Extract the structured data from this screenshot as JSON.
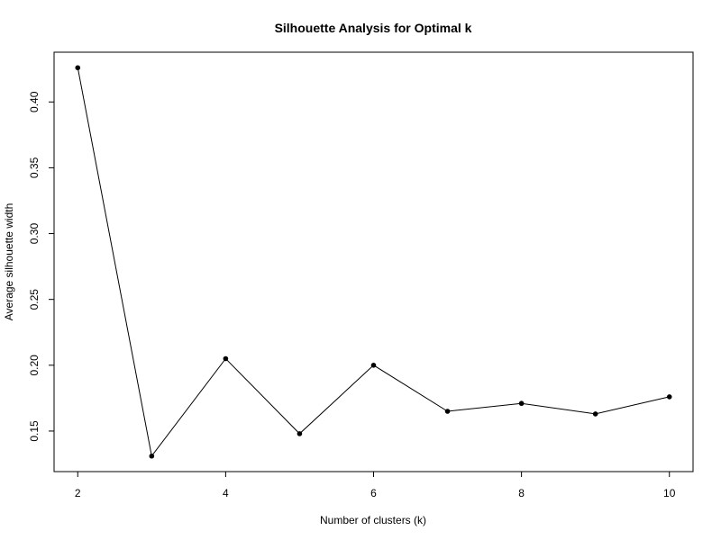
{
  "chart_data": {
    "type": "line",
    "title": "Silhouette Analysis for Optimal k",
    "xlabel": "Number of clusters (k)",
    "ylabel": "Average silhouette width",
    "x": [
      2,
      3,
      4,
      5,
      6,
      7,
      8,
      9,
      10
    ],
    "series": [
      {
        "values": [
          0.426,
          0.131,
          0.205,
          0.148,
          0.2,
          0.165,
          0.171,
          0.163,
          0.176
        ]
      }
    ],
    "xlim": [
      1.68,
      10.32
    ],
    "ylim": [
      0.1192,
      0.4378
    ],
    "xticks": [
      2,
      4,
      6,
      8,
      10
    ],
    "xtick_labels": [
      "2",
      "4",
      "6",
      "8",
      "10"
    ],
    "yticks": [
      0.15,
      0.2,
      0.25,
      0.3,
      0.35,
      0.4
    ],
    "ytick_labels": [
      "0.15",
      "0.20",
      "0.25",
      "0.30",
      "0.35",
      "0.40"
    ],
    "grid": false,
    "legend": "none",
    "colors": {
      "line": "#000000",
      "points": "#000000",
      "frame": "#000000"
    }
  }
}
